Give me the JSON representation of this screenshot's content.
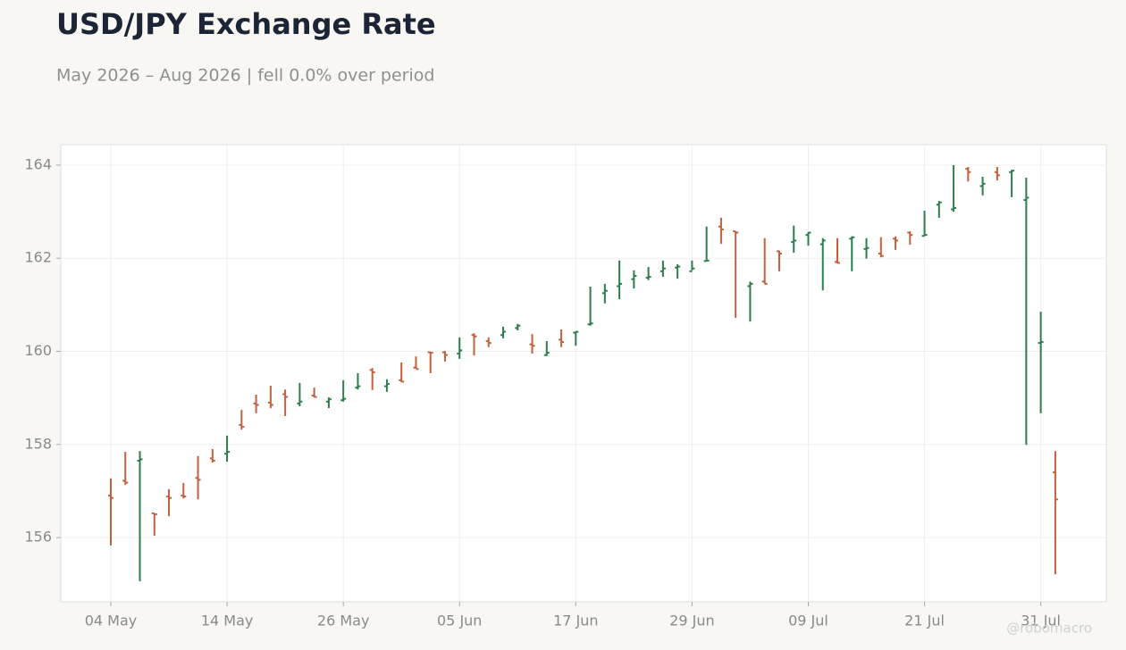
{
  "chart_data": {
    "type": "ohlc",
    "title": "USD/JPY Exchange Rate",
    "subtitle": "May 2026 – Aug 2026 | fell 0.0% over period",
    "watermark": "@robomacro",
    "categories": [
      "04 May",
      null,
      null,
      null,
      null,
      null,
      null,
      null,
      "14 May",
      null,
      null,
      null,
      null,
      null,
      null,
      null,
      "26 May",
      null,
      null,
      null,
      null,
      null,
      null,
      null,
      "05 Jun",
      null,
      null,
      null,
      null,
      null,
      null,
      null,
      "17 Jun",
      null,
      null,
      null,
      null,
      null,
      null,
      null,
      "29 Jun",
      null,
      null,
      null,
      null,
      null,
      null,
      null,
      "09 Jul",
      null,
      null,
      null,
      null,
      null,
      null,
      null,
      "21 Jul",
      null,
      null,
      null,
      null,
      null,
      null,
      null,
      "31 Jul",
      null
    ],
    "open": [
      156.9,
      157.22,
      157.65,
      156.52,
      156.88,
      156.9,
      157.28,
      157.7,
      157.8,
      158.42,
      158.88,
      158.9,
      159.08,
      158.88,
      159.05,
      158.92,
      158.95,
      159.22,
      159.6,
      159.25,
      159.38,
      159.65,
      159.98,
      159.98,
      159.95,
      160.35,
      160.22,
      160.35,
      160.5,
      160.15,
      159.92,
      160.25,
      160.4,
      160.58,
      161.25,
      161.4,
      161.55,
      161.58,
      161.72,
      161.8,
      161.72,
      161.94,
      162.68,
      162.58,
      161.4,
      161.5,
      162.15,
      162.35,
      162.5,
      162.3,
      161.92,
      162.42,
      162.2,
      162.1,
      162.42,
      162.55,
      162.48,
      163.15,
      163.05,
      163.92,
      163.55,
      163.85,
      163.85,
      163.25,
      160.18,
      157.4
    ],
    "high": [
      157.27,
      157.84,
      157.86,
      156.52,
      157.04,
      157.17,
      157.75,
      157.9,
      158.19,
      158.74,
      159.07,
      159.26,
      159.18,
      159.32,
      159.22,
      159.01,
      159.38,
      159.53,
      159.64,
      159.4,
      159.76,
      159.89,
      159.99,
      160.01,
      160.3,
      160.39,
      160.3,
      160.53,
      160.59,
      160.37,
      160.22,
      160.47,
      160.43,
      161.39,
      161.45,
      161.95,
      161.74,
      161.81,
      161.95,
      161.87,
      161.95,
      162.68,
      162.87,
      162.58,
      161.5,
      162.43,
      162.16,
      162.7,
      162.56,
      162.43,
      162.43,
      162.47,
      162.43,
      162.45,
      162.47,
      162.58,
      163.02,
      163.23,
      164.0,
      163.96,
      163.75,
      163.96,
      163.9,
      163.73,
      160.85,
      157.86
    ],
    "low": [
      155.83,
      157.13,
      155.06,
      156.04,
      156.46,
      156.84,
      156.82,
      157.61,
      157.63,
      158.32,
      158.67,
      158.78,
      158.61,
      158.82,
      159.01,
      158.78,
      158.92,
      159.18,
      159.17,
      159.13,
      159.34,
      159.63,
      159.53,
      159.78,
      159.84,
      159.91,
      160.09,
      160.28,
      160.45,
      159.95,
      159.9,
      160.09,
      160.12,
      160.55,
      161.03,
      161.12,
      161.35,
      161.53,
      161.6,
      161.56,
      161.74,
      161.93,
      162.31,
      160.72,
      160.64,
      161.45,
      161.72,
      162.12,
      162.27,
      161.31,
      161.89,
      161.72,
      161.99,
      162.02,
      162.18,
      162.29,
      162.48,
      162.87,
      163.0,
      163.65,
      163.35,
      163.67,
      163.31,
      157.99,
      158.67,
      155.21
    ],
    "close": [
      156.85,
      157.18,
      157.68,
      156.5,
      156.85,
      156.88,
      157.24,
      157.65,
      157.84,
      158.38,
      158.85,
      158.85,
      159.02,
      158.92,
      159.02,
      158.97,
      158.98,
      159.25,
      159.55,
      159.3,
      159.35,
      159.62,
      159.97,
      159.92,
      160.02,
      160.32,
      160.18,
      160.42,
      160.55,
      160.12,
      159.97,
      160.2,
      160.42,
      160.6,
      161.3,
      161.45,
      161.62,
      161.6,
      161.78,
      161.82,
      161.78,
      161.95,
      162.62,
      162.55,
      161.45,
      161.45,
      162.1,
      162.38,
      162.55,
      162.38,
      161.9,
      162.45,
      162.22,
      162.05,
      162.38,
      162.5,
      162.5,
      163.2,
      163.08,
      163.85,
      163.6,
      163.78,
      163.88,
      163.3,
      160.2,
      156.82
    ],
    "up_color": "#2e7d4f",
    "down_color": "#c4603f",
    "ylim": [
      154.62,
      164.44
    ],
    "yticks": [
      156,
      158,
      160,
      162,
      164
    ],
    "grid": true
  }
}
